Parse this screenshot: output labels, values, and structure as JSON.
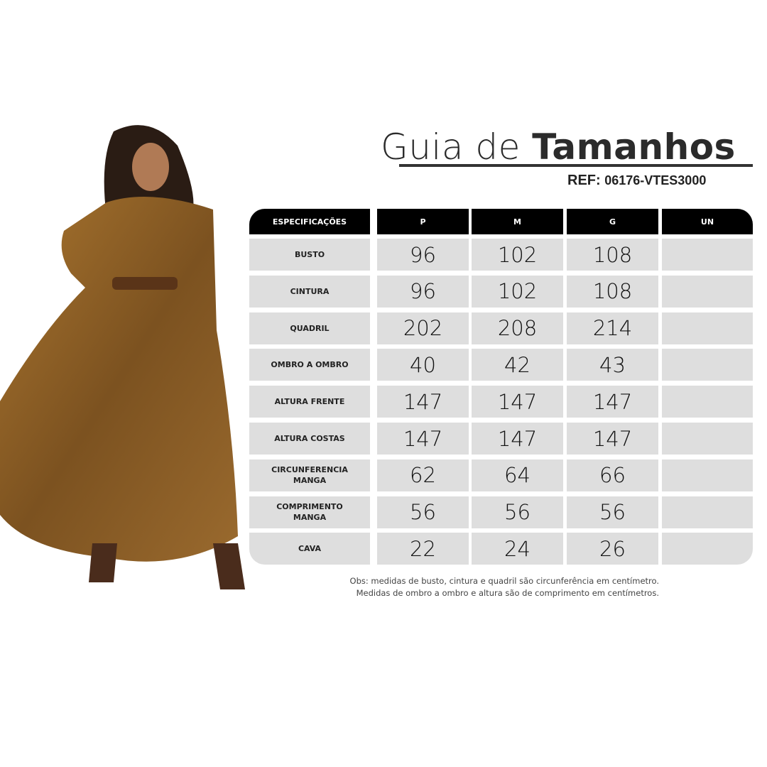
{
  "title": {
    "light": "Guia de ",
    "bold": "Tamanhos"
  },
  "ref": {
    "label": "REF:",
    "code": "06176-VTES3000"
  },
  "table": {
    "headers": [
      "ESPECIFICAÇÕES",
      "P",
      "M",
      "G",
      "UN"
    ],
    "rows": [
      {
        "label": "BUSTO",
        "values": [
          "96",
          "102",
          "108",
          ""
        ]
      },
      {
        "label": "CINTURA",
        "values": [
          "96",
          "102",
          "108",
          ""
        ]
      },
      {
        "label": "QUADRIL",
        "values": [
          "202",
          "208",
          "214",
          ""
        ]
      },
      {
        "label": "OMBRO A OMBRO",
        "values": [
          "40",
          "42",
          "43",
          ""
        ]
      },
      {
        "label": "ALTURA FRENTE",
        "values": [
          "147",
          "147",
          "147",
          ""
        ]
      },
      {
        "label": "ALTURA COSTAS",
        "values": [
          "147",
          "147",
          "147",
          ""
        ]
      },
      {
        "label": "CIRCUNFERENCIA MANGA",
        "values": [
          "62",
          "64",
          "66",
          ""
        ]
      },
      {
        "label": "COMPRIMENTO MANGA",
        "values": [
          "56",
          "56",
          "56",
          ""
        ]
      },
      {
        "label": "CAVA",
        "values": [
          "22",
          "24",
          "26",
          ""
        ]
      }
    ]
  },
  "notes": [
    "Obs: medidas de busto, cintura e quadril são circunferência em centímetro.",
    "Medidas de ombro a ombro e altura são de comprimento em centímetros."
  ],
  "colors": {
    "header_bg": "#000000",
    "cell_bg": "#dedede",
    "dress": "#8a5a22"
  }
}
